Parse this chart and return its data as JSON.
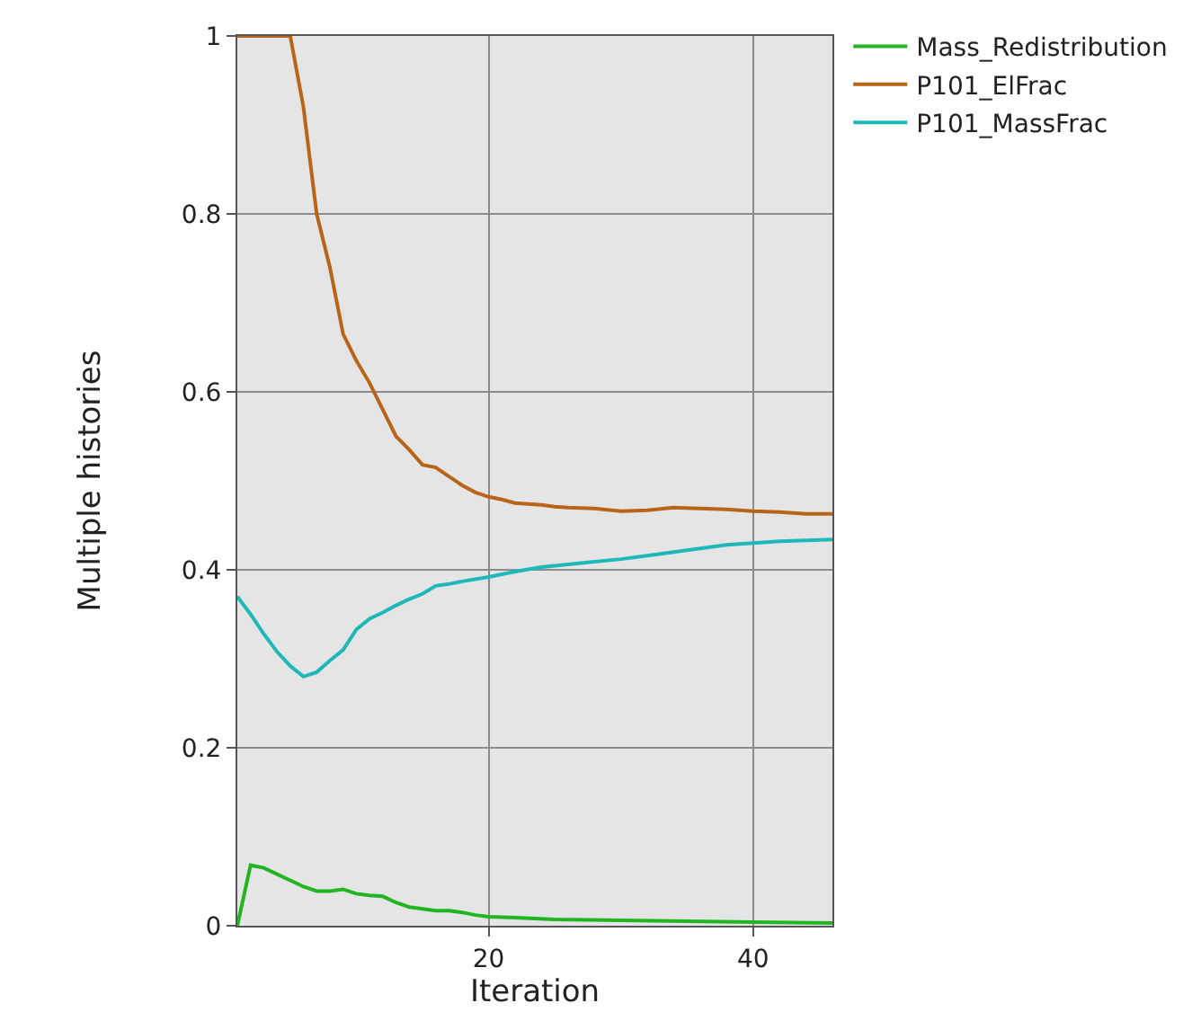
{
  "chart_data": {
    "type": "line",
    "xlabel": "Iteration",
    "ylabel": "Multiple histories",
    "xlim": [
      1,
      46
    ],
    "xticks": [
      20,
      40
    ],
    "ylim": [
      0,
      1
    ],
    "yticks": [
      0,
      0.2,
      0.4,
      0.6,
      0.8,
      1
    ],
    "grid": true,
    "legend": "top right",
    "marker": "none",
    "line_style": "solid",
    "series": [
      {
        "name": "Mass_Redistribution",
        "color": "#22b522",
        "x": [
          1,
          2,
          3,
          4,
          5,
          6,
          7,
          8,
          9,
          10,
          11,
          12,
          13,
          14,
          15,
          16,
          17,
          18,
          19,
          20,
          22,
          25,
          30,
          35,
          40,
          46
        ],
        "values": [
          0,
          0.068,
          0.065,
          0.058,
          0.051,
          0.044,
          0.039,
          0.039,
          0.041,
          0.036,
          0.034,
          0.033,
          0.026,
          0.021,
          0.019,
          0.017,
          0.017,
          0.015,
          0.012,
          0.01,
          0.009,
          0.007,
          0.006,
          0.005,
          0.004,
          0.003
        ]
      },
      {
        "name": "P101_ElFrac",
        "color": "#b8651a",
        "x": [
          1,
          2,
          3,
          4,
          5,
          6,
          7,
          8,
          9,
          10,
          11,
          12,
          13,
          14,
          15,
          16,
          17,
          18,
          19,
          20,
          21,
          22,
          23,
          24,
          25,
          26,
          28,
          30,
          32,
          34,
          36,
          38,
          40,
          42,
          44,
          46
        ],
        "values": [
          1,
          1,
          1,
          1,
          1,
          0.92,
          0.8,
          0.74,
          0.665,
          0.635,
          0.61,
          0.58,
          0.55,
          0.535,
          0.518,
          0.515,
          0.505,
          0.495,
          0.487,
          0.482,
          0.479,
          0.475,
          0.474,
          0.473,
          0.471,
          0.47,
          0.469,
          0.466,
          0.467,
          0.47,
          0.469,
          0.468,
          0.466,
          0.465,
          0.463,
          0.463
        ]
      },
      {
        "name": "P101_MassFrac",
        "color": "#1fb8b8",
        "x": [
          1,
          2,
          3,
          4,
          5,
          6,
          7,
          8,
          9,
          10,
          11,
          12,
          13,
          14,
          15,
          16,
          17,
          18,
          20,
          22,
          24,
          26,
          28,
          30,
          32,
          34,
          36,
          38,
          40,
          42,
          44,
          46
        ],
        "values": [
          0.37,
          0.35,
          0.328,
          0.308,
          0.292,
          0.28,
          0.285,
          0.298,
          0.31,
          0.333,
          0.345,
          0.352,
          0.36,
          0.367,
          0.373,
          0.382,
          0.384,
          0.387,
          0.392,
          0.398,
          0.403,
          0.406,
          0.409,
          0.412,
          0.416,
          0.42,
          0.424,
          0.428,
          0.43,
          0.432,
          0.433,
          0.434
        ]
      }
    ]
  }
}
